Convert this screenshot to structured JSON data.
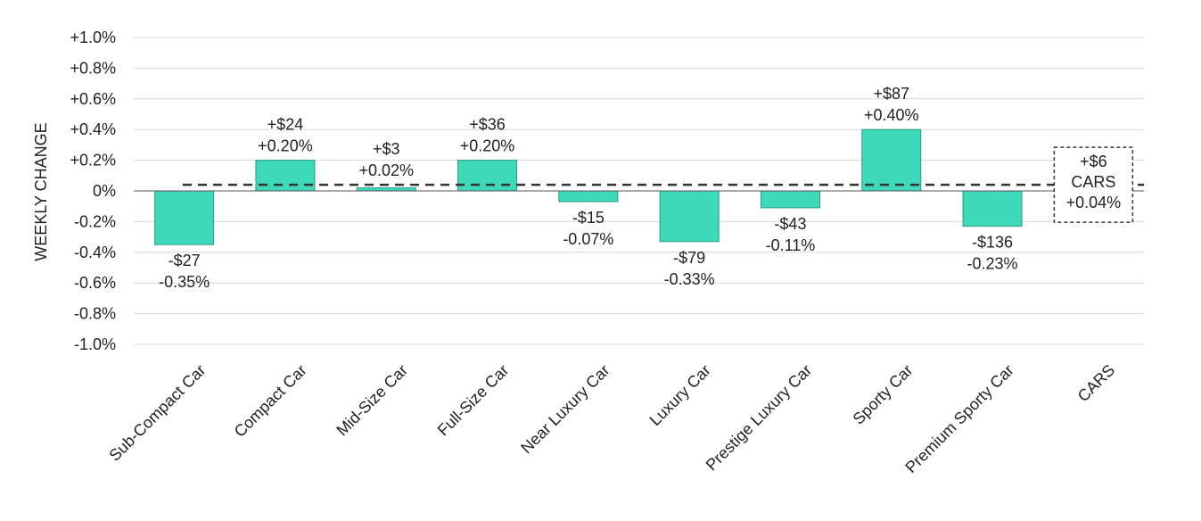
{
  "chart_data": {
    "type": "bar",
    "categories": [
      "Sub-Compact Car",
      "Compact Car",
      "Mid-Size Car",
      "Full-Size Car",
      "Near Luxury Car",
      "Luxury Car",
      "Prestige Luxury Car",
      "Sporty Car",
      "Premium Sporty Car",
      "CARS"
    ],
    "values": [
      -0.35,
      0.2,
      0.02,
      0.2,
      -0.07,
      -0.33,
      -0.11,
      0.4,
      -0.23,
      null
    ],
    "dollar_labels": [
      "-$27",
      "+$24",
      "+$3",
      "+$36",
      "-$15",
      "-$79",
      "-$43",
      "+$87",
      "-$136",
      "+$6"
    ],
    "percent_labels": [
      "-0.35%",
      "+0.20%",
      "+0.02%",
      "+0.20%",
      "-0.07%",
      "-0.33%",
      "-0.11%",
      "+0.40%",
      "-0.23%",
      "+0.04%"
    ],
    "reference_line": {
      "value": 0.04,
      "style": "dashed",
      "label_lines": [
        "+$6",
        "CARS",
        "+0.04%"
      ]
    },
    "ylabel": "WEEKLY CHANGE",
    "xlabel": "",
    "title": "",
    "ylim": [
      -1.0,
      1.0
    ],
    "yticks": [
      1.0,
      0.8,
      0.6,
      0.4,
      0.2,
      0,
      -0.2,
      -0.4,
      -0.6,
      -0.8,
      -1.0
    ],
    "ytick_labels": [
      "+1.0%",
      "+0.8%",
      "+0.6%",
      "+0.4%",
      "+0.2%",
      "0%",
      "-0.2%",
      "-0.4%",
      "-0.6%",
      "-0.8%",
      "-1.0%"
    ],
    "grid": true,
    "colors": {
      "bar": "#3dd9b8",
      "bar_stroke": "#2a9c85",
      "grid": "#d9d9d9",
      "zero_line": "#555555",
      "ref_line": "#333333"
    }
  }
}
